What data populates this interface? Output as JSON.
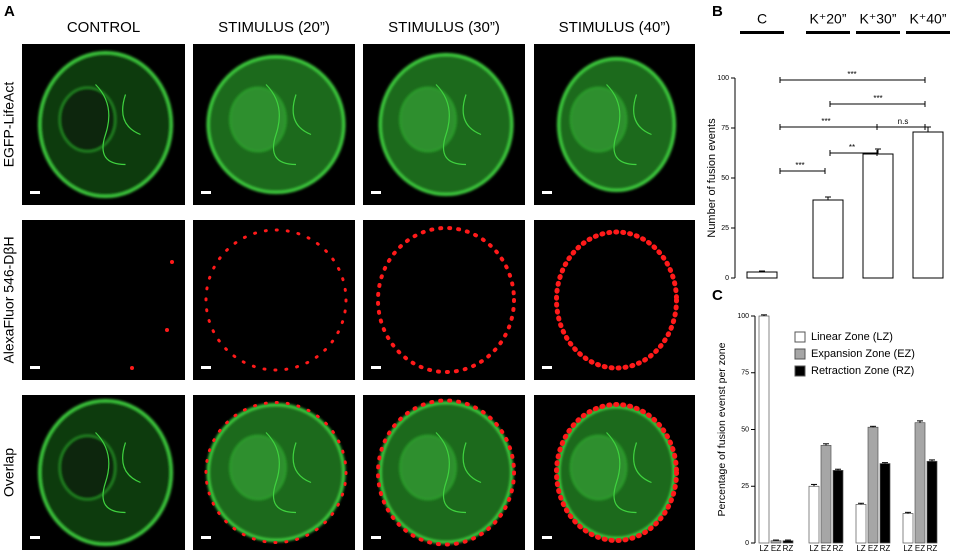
{
  "panel_a": {
    "label": "A",
    "columns": [
      "CONTROL",
      "STIMULUS (20”)",
      "STIMULUS (30”)",
      "STIMULUS (40”)"
    ],
    "rows": [
      "EGFP-LifeAct",
      "AlexaFluor 546-DβH",
      "Overlap"
    ]
  },
  "chart_data": [
    {
      "type": "bar",
      "label": "B",
      "categories": [
        "C",
        "K⁺20”",
        "K⁺30”",
        "K⁺40”"
      ],
      "values": [
        3,
        39,
        62,
        73
      ],
      "errors": [
        0.5,
        1.5,
        2.5,
        2.5
      ],
      "color": "#ffffff",
      "ylabel": "Number of fusion events",
      "ylim": [
        0,
        100
      ],
      "yticks": [
        0,
        25,
        50,
        75,
        100
      ],
      "annotations": [
        "***",
        "***",
        "***",
        "n.s",
        "**",
        "***"
      ]
    },
    {
      "type": "grouped-bar",
      "label": "C",
      "categories": [
        null,
        null,
        null,
        null
      ],
      "bar_labels": [
        "LZ",
        "EZ",
        "RZ"
      ],
      "ylabel": "Percentage of fusion evenst per zone",
      "ylim": [
        0,
        100
      ],
      "yticks": [
        0,
        25,
        50,
        75,
        100
      ],
      "legend": "upper right",
      "series": [
        {
          "name": "Linear Zone (LZ)",
          "color": "#ffffff",
          "values": [
            100,
            25,
            17,
            13
          ],
          "errors": [
            0.5,
            0.8,
            0.5,
            0.5
          ]
        },
        {
          "name": "Expansion Zone (EZ)",
          "color": "#a6a6a6",
          "values": [
            1,
            43,
            51,
            53
          ],
          "errors": [
            0.3,
            0.7,
            0.4,
            0.8
          ]
        },
        {
          "name": "Retraction Zone (RZ)",
          "color": "#000000",
          "values": [
            1,
            32,
            35,
            36
          ],
          "errors": [
            0.3,
            0.5,
            0.4,
            0.6
          ]
        }
      ]
    }
  ]
}
